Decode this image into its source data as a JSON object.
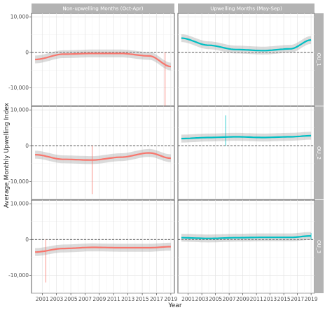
{
  "chart_data": {
    "type": "line",
    "title": "",
    "xlabel": "Year",
    "ylabel": "Average Monthly Upwelling Index",
    "columns": [
      {
        "label": "Non-upwelling Months (Oct-Apr)",
        "color": "#F8766D"
      },
      {
        "label": "Upwelling Months (May-Sep)",
        "color": "#00BFC4"
      }
    ],
    "rows": [
      "OU_1",
      "OU_2",
      "OU_3"
    ],
    "x_ticks": [
      "2001",
      "2003",
      "2005",
      "2007",
      "2009",
      "2011",
      "2013",
      "2015",
      "2017",
      "2019"
    ],
    "xlim": [
      1999.5,
      2019.5
    ],
    "y_ticks": [
      -10000,
      0,
      10000
    ],
    "y_tick_labels": [
      "-10,000",
      "0",
      "10,000"
    ],
    "ylim": [
      -15000,
      11000
    ],
    "reference_line_y": 0,
    "smooth_trend": {
      "x": [
        2000,
        2004,
        2008,
        2012,
        2016,
        2019
      ],
      "OU_1": {
        "non_upwelling": [
          -2000,
          -500,
          -300,
          -300,
          -1000,
          -4000
        ],
        "upwelling": [
          4000,
          2000,
          800,
          500,
          1000,
          3500
        ]
      },
      "OU_2": {
        "non_upwelling": [
          -2500,
          -3800,
          -4000,
          -3200,
          -2000,
          -3500
        ],
        "upwelling": [
          2000,
          2300,
          2500,
          2300,
          2500,
          2800
        ]
      },
      "OU_3": {
        "non_upwelling": [
          -3500,
          -2500,
          -2200,
          -2300,
          -2300,
          -2000
        ],
        "upwelling": [
          500,
          300,
          500,
          600,
          600,
          1000
        ]
      }
    },
    "notable_values": [
      {
        "panel": "OU_1 Non-upwelling",
        "year": 2018.2,
        "value": -16500
      },
      {
        "panel": "OU_2 Non-upwelling",
        "year": 2008,
        "value": -13500
      },
      {
        "panel": "OU_2 Upwelling",
        "year": 2006.5,
        "value": 8500
      },
      {
        "panel": "OU_3 Non-upwelling",
        "year": 2001.5,
        "value": -12000
      },
      {
        "panel": "OU_3 Upwelling",
        "year": 2019,
        "value": 1800
      }
    ]
  }
}
